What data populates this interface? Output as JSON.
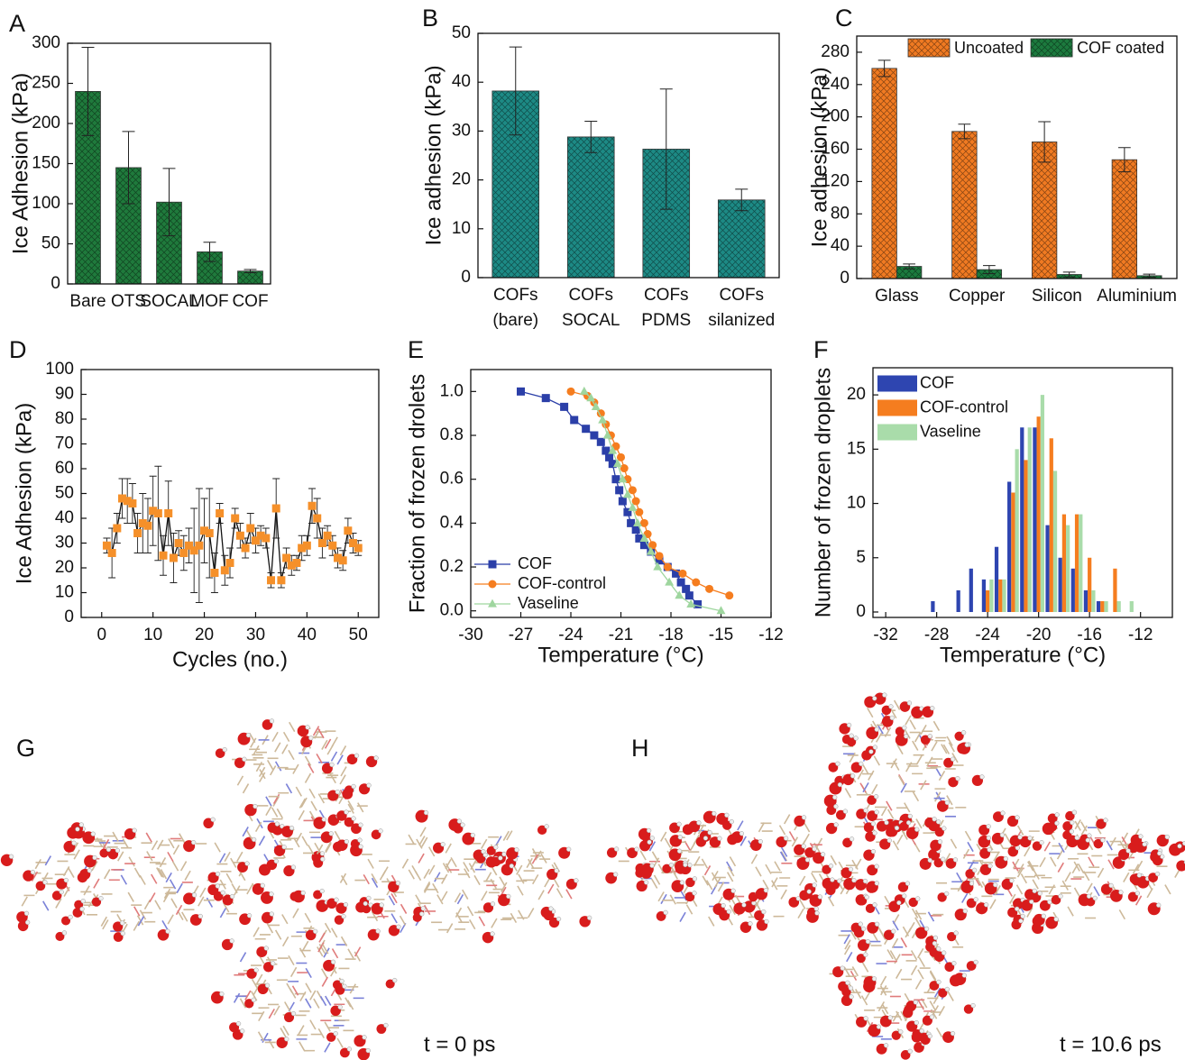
{
  "chart_data": [
    {
      "panel": "A",
      "type": "bar",
      "hatch": true,
      "y_label": "Ice Adhesion (kPa)",
      "categories": [
        "Bare",
        "OTS",
        "SOCAL",
        "MOF",
        "COF"
      ],
      "values": [
        240,
        145,
        102,
        40,
        16
      ],
      "errors": [
        55,
        45,
        42,
        12,
        2
      ],
      "color": "#1f7a3c",
      "ylim": [
        0,
        300
      ],
      "yticks": [
        0,
        50,
        100,
        150,
        200,
        250,
        300
      ]
    },
    {
      "panel": "B",
      "type": "bar",
      "hatch": true,
      "y_label": "Ice adhesion (kPa)",
      "categories": [
        [
          "COFs",
          "(bare)"
        ],
        [
          "COFs",
          "SOCAL"
        ],
        [
          "COFs",
          "PDMS"
        ],
        [
          "COFs",
          "silanized"
        ]
      ],
      "values": [
        38.2,
        28.8,
        26.3,
        15.9
      ],
      "errors": [
        9,
        3.2,
        12.3,
        2.2
      ],
      "color": "#1d8a85",
      "ylim": [
        0,
        50
      ],
      "yticks": [
        0,
        10,
        20,
        30,
        40,
        50
      ]
    },
    {
      "panel": "C",
      "type": "bar",
      "hatch": true,
      "y_label": "Ice adhesion (kPa)",
      "legend": "top",
      "categories": [
        "Glass",
        "Copper",
        "Silicon",
        "Aluminium"
      ],
      "series": [
        {
          "name": "Uncoated",
          "color": "#f07a22",
          "values": [
            260,
            182,
            169,
            147
          ],
          "errors": [
            10,
            9,
            25,
            15
          ]
        },
        {
          "name": "COF coated",
          "color": "#1c7a3e",
          "values": [
            15,
            11,
            5,
            3.5
          ],
          "errors": [
            3,
            5,
            3,
            2
          ]
        }
      ],
      "ylim": [
        0,
        300
      ],
      "yticks": [
        0,
        40,
        80,
        120,
        160,
        200,
        240,
        280
      ]
    },
    {
      "panel": "D",
      "type": "line",
      "y_label": "Ice Adhesion (kPa)",
      "x_label": "Cycles (no.)",
      "marker": "square",
      "color": "#f5902a",
      "line_color": "#111111",
      "x": [
        1,
        2,
        3,
        4,
        5,
        6,
        7,
        8,
        9,
        10,
        11,
        12,
        13,
        14,
        15,
        16,
        17,
        18,
        19,
        20,
        21,
        22,
        23,
        24,
        25,
        26,
        27,
        28,
        29,
        30,
        31,
        32,
        33,
        34,
        35,
        36,
        37,
        38,
        39,
        40,
        41,
        42,
        43,
        44,
        45,
        46,
        47,
        48,
        49,
        50
      ],
      "values": [
        29,
        26,
        36,
        48,
        47,
        46,
        34,
        38,
        37,
        43,
        42,
        25,
        42,
        24,
        30,
        26,
        29,
        27,
        29,
        35,
        34,
        18,
        42,
        19,
        22,
        40,
        33,
        28,
        36,
        31,
        33,
        32,
        15,
        44,
        15,
        24,
        21,
        22,
        28,
        29,
        45,
        40,
        30,
        33,
        29,
        24,
        23,
        35,
        30,
        28
      ],
      "errors": [
        3,
        10,
        6,
        8,
        9,
        8,
        8,
        12,
        11,
        14,
        19,
        8,
        13,
        10,
        5,
        7,
        7,
        17,
        23,
        13,
        18,
        8,
        4,
        6,
        6,
        4,
        5,
        4,
        6,
        5,
        4,
        4,
        3,
        12,
        3,
        4,
        4,
        3,
        5,
        4,
        7,
        8,
        6,
        4,
        4,
        4,
        4,
        5,
        4,
        3
      ],
      "xlim": [
        -4,
        54
      ],
      "xticks": [
        0,
        10,
        20,
        30,
        40,
        50
      ],
      "ylim": [
        0,
        100
      ],
      "yticks": [
        0,
        10,
        20,
        30,
        40,
        50,
        60,
        70,
        80,
        90,
        100
      ]
    },
    {
      "panel": "E",
      "type": "line",
      "y_label": "Fraction of frozen drolets",
      "x_label": "Temperature (°C)",
      "legend": "lower left",
      "series": [
        {
          "name": "COF",
          "color": "#2b3fa8",
          "marker": "square",
          "x": [
            -27,
            -25.5,
            -24.4,
            -23.8,
            -23.1,
            -22.6,
            -22.2,
            -21.9,
            -21.7,
            -21.5,
            -21.3,
            -21.1,
            -20.9,
            -20.6,
            -20.4,
            -20.1,
            -19.9,
            -19.6,
            -19.2,
            -18.7,
            -18.2,
            -17.7,
            -17.4,
            -17.1,
            -16.9,
            -16.4
          ],
          "values": [
            1.0,
            0.97,
            0.93,
            0.87,
            0.83,
            0.8,
            0.77,
            0.73,
            0.7,
            0.67,
            0.6,
            0.55,
            0.5,
            0.45,
            0.4,
            0.37,
            0.33,
            0.3,
            0.27,
            0.23,
            0.2,
            0.17,
            0.13,
            0.1,
            0.07,
            0.03
          ]
        },
        {
          "name": "COF-control",
          "color": "#f57d1f",
          "marker": "circle",
          "x": [
            -24,
            -23,
            -22.6,
            -22.2,
            -21.9,
            -21.6,
            -21.3,
            -21,
            -20.8,
            -20.6,
            -20.3,
            -20.1,
            -19.9,
            -19.6,
            -19.4,
            -19.1,
            -18.7,
            -18.2,
            -17.3,
            -16.5,
            -15.7,
            -14.5
          ],
          "values": [
            1.0,
            0.98,
            0.95,
            0.9,
            0.85,
            0.8,
            0.75,
            0.7,
            0.65,
            0.6,
            0.55,
            0.5,
            0.45,
            0.4,
            0.35,
            0.3,
            0.25,
            0.2,
            0.17,
            0.13,
            0.1,
            0.07
          ]
        },
        {
          "name": "Vaseline",
          "color": "#9fd69f",
          "marker": "triangle",
          "x": [
            -23.2,
            -22.8,
            -22.5,
            -22.1,
            -21.8,
            -21.5,
            -21.2,
            -20.9,
            -20.6,
            -20.3,
            -20,
            -19.6,
            -19.2,
            -18.8,
            -18.1,
            -17.5,
            -16.8,
            -15
          ],
          "values": [
            1.0,
            0.97,
            0.93,
            0.87,
            0.8,
            0.73,
            0.67,
            0.6,
            0.53,
            0.47,
            0.4,
            0.33,
            0.27,
            0.2,
            0.13,
            0.07,
            0.03,
            0.0
          ]
        }
      ],
      "xlim": [
        -30,
        -12
      ],
      "xticks": [
        -30,
        -27,
        -24,
        -21,
        -18,
        -15,
        -12
      ],
      "ylim": [
        -0.03,
        1.1
      ],
      "yticks": [
        {
          "value": 0,
          "label": "0.0"
        },
        0.2,
        0.4,
        0.6,
        0.8,
        {
          "value": 1,
          "label": "1.0"
        }
      ]
    },
    {
      "panel": "F",
      "type": "bar",
      "y_label": "Number of frozen droplets",
      "x_label": "Temperature (°C)",
      "legend": "upper left",
      "x": [
        -28,
        -27,
        -26,
        -25,
        -24,
        -23,
        -22,
        -21,
        -20,
        -19,
        -18,
        -17,
        -16,
        -15,
        -14,
        -13
      ],
      "series": [
        {
          "name": "COF",
          "color": "#2e45b0",
          "values": [
            1,
            0,
            2,
            4,
            3,
            6,
            12,
            17,
            17,
            8,
            5,
            4,
            2,
            1,
            0,
            0
          ]
        },
        {
          "name": "COF-control",
          "color": "#f57d1f",
          "values": [
            0,
            0,
            0,
            0,
            2,
            3,
            11,
            14,
            18,
            16,
            9,
            9,
            5,
            1,
            4,
            0
          ]
        },
        {
          "name": "Vaseline",
          "color": "#a9dcaa",
          "values": [
            0,
            0,
            0,
            0,
            3,
            3,
            15,
            17,
            20,
            13,
            8,
            9,
            2,
            1,
            1,
            1
          ]
        }
      ],
      "xlim": [
        -33,
        -9.5
      ],
      "xticks": [
        -32,
        -28,
        -24,
        -20,
        -16,
        -12
      ],
      "ylim": [
        -0.5,
        22.5
      ],
      "yticks": [
        0,
        5,
        10,
        15,
        20
      ]
    }
  ],
  "figures": [
    {
      "panel": "G",
      "caption": "t = 0 ps"
    },
    {
      "panel": "H",
      "caption": "t = 10.6 ps"
    }
  ]
}
